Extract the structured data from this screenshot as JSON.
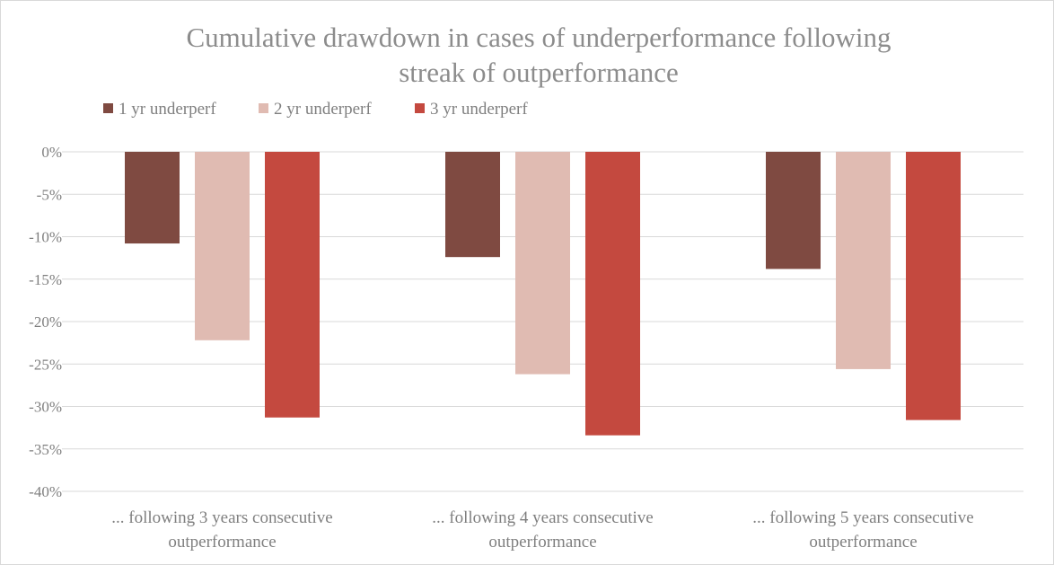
{
  "chart_data": {
    "type": "bar",
    "title_lines": [
      "Cumulative drawdown in cases of underperformance following",
      "streak of outperformance"
    ],
    "categories": [
      [
        "... following 3 years consecutive",
        "outperformance"
      ],
      [
        "... following 4 years consecutive",
        "outperformance"
      ],
      [
        "... following 5 years consecutive",
        "outperformance"
      ]
    ],
    "series": [
      {
        "name": "1 yr underperf",
        "color": "#7f4a41",
        "values": [
          -10.8,
          -12.4,
          -13.8
        ]
      },
      {
        "name": "2 yr underperf",
        "color": "#e0bbb2",
        "values": [
          -22.2,
          -26.2,
          -25.6
        ]
      },
      {
        "name": "3 yr underperf",
        "color": "#c4493f",
        "values": [
          -31.3,
          -33.4,
          -31.6
        ]
      }
    ],
    "y_ticks": [
      {
        "value": 0,
        "label": "0%"
      },
      {
        "value": -5,
        "label": "-5%"
      },
      {
        "value": -10,
        "label": "-10%"
      },
      {
        "value": -15,
        "label": "-15%"
      },
      {
        "value": -20,
        "label": "-20%"
      },
      {
        "value": -25,
        "label": "-25%"
      },
      {
        "value": -30,
        "label": "-30%"
      },
      {
        "value": -35,
        "label": "-35%"
      },
      {
        "value": -40,
        "label": "-40%"
      }
    ],
    "ylim": [
      -40,
      0
    ],
    "grid": true,
    "legend_position": "top-left",
    "gridline_color": "#d9d9d9"
  }
}
